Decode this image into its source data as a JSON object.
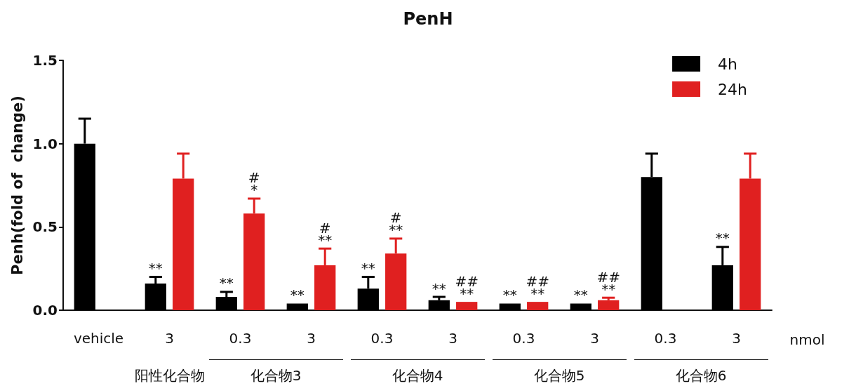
{
  "chart_data": {
    "type": "bar",
    "title": "PenH",
    "ylabel": "Penh(fold of  change)",
    "categories": [
      "vehicle",
      "3",
      "0.3",
      "3",
      "0.3",
      "3",
      "0.3",
      "3",
      "0.3",
      "3"
    ],
    "series": [
      {
        "name": "4h",
        "color": "#000000",
        "values": [
          1.0,
          0.16,
          0.08,
          0.04,
          0.13,
          0.06,
          0.04,
          0.04,
          0.8,
          0.27
        ],
        "errors": [
          0.15,
          0.04,
          0.03,
          null,
          0.07,
          0.02,
          null,
          null,
          0.14,
          0.11
        ],
        "value_labels": [
          null,
          "**",
          "**",
          "**",
          "**",
          "**",
          "**",
          "**",
          null,
          "**"
        ]
      },
      {
        "name": "24h",
        "color": "#e02020",
        "values": [
          null,
          0.79,
          0.58,
          0.27,
          0.34,
          0.05,
          0.05,
          0.06,
          null,
          0.79
        ],
        "errors": [
          null,
          0.15,
          0.09,
          0.1,
          0.09,
          null,
          null,
          0.015,
          null,
          0.15
        ],
        "value_labels": [
          null,
          null,
          "#\n*",
          "#\n**",
          "#\n**",
          "##\n**",
          "##\n**",
          "##\n**",
          null,
          null
        ]
      }
    ],
    "ylim": [
      0,
      1.5
    ],
    "yticks": [
      {
        "value": 0,
        "label": "0.0"
      },
      {
        "value": 0.5,
        "label": "0.5"
      },
      {
        "value": 1,
        "label": "1.0"
      },
      {
        "value": 1.5,
        "label": "1.5"
      }
    ],
    "annotations": [
      "阳性化合物",
      "化合物3",
      "化合物4",
      "化合物5",
      "化合物6",
      "nmol"
    ],
    "grid": false,
    "legend": "top right"
  }
}
